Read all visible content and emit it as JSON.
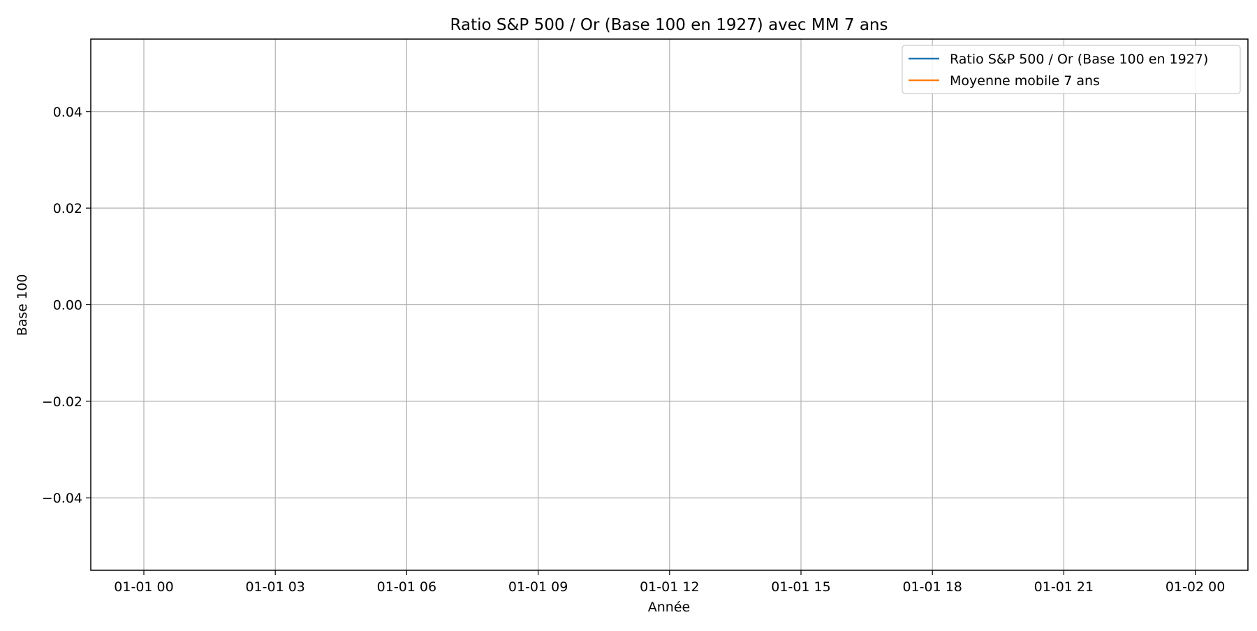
{
  "chart_data": {
    "type": "line",
    "title": "Ratio S&P 500 / Or (Base 100 en 1927) avec MM 7 ans",
    "xlabel": "Année",
    "ylabel": "Base 100",
    "x_ticks": [
      "01-01 00",
      "01-01 03",
      "01-01 06",
      "01-01 09",
      "01-01 12",
      "01-01 15",
      "01-01 18",
      "01-01 21",
      "01-02 00"
    ],
    "y_ticks": [
      0.04,
      0.02,
      0.0,
      -0.02,
      -0.04
    ],
    "y_tick_labels": [
      "0.04",
      "0.02",
      "0.00",
      "−0.02",
      "−0.04"
    ],
    "ylim": [
      -0.055,
      0.055
    ],
    "grid": true,
    "legend_position": "top-right",
    "series": [
      {
        "name": "Ratio S&P 500 / Or (Base 100 en 1927)",
        "color": "#1f77b4",
        "x": [],
        "values": []
      },
      {
        "name": "Moyenne mobile 7 ans",
        "color": "#ff7f0e",
        "x": [],
        "values": []
      }
    ]
  }
}
